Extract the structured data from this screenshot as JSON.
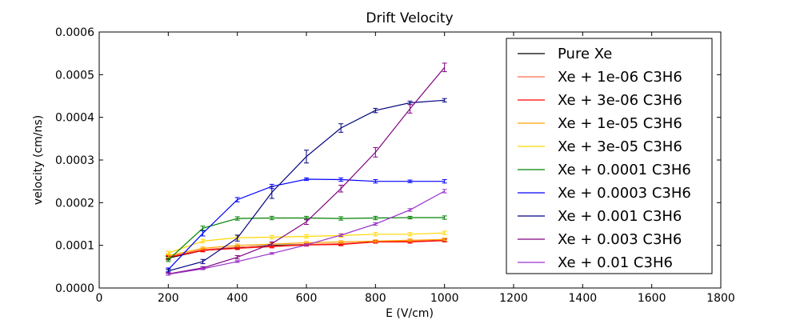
{
  "chart_data": {
    "type": "line",
    "title": "Drift Velocity",
    "xlabel": "E (V/cm)",
    "ylabel": "velocity (cm/ns)",
    "xlim": [
      0,
      1800
    ],
    "ylim": [
      0,
      0.0006
    ],
    "xticks": [
      0,
      200,
      400,
      600,
      800,
      1000,
      1200,
      1400,
      1600,
      1800
    ],
    "xtick_labels": [
      "0",
      "200",
      "400",
      "600",
      "800",
      "1000",
      "1200",
      "1400",
      "1600",
      "1800"
    ],
    "yticks": [
      0,
      0.0001,
      0.0002,
      0.0003,
      0.0004,
      0.0005,
      0.0006
    ],
    "ytick_labels": [
      "0.0000",
      "0.0001",
      "0.0002",
      "0.0003",
      "0.0004",
      "0.0005",
      "0.0006"
    ],
    "grid": false,
    "legend_position": "top-right",
    "x": [
      200,
      300,
      400,
      500,
      600,
      700,
      800,
      900,
      1000
    ],
    "series": [
      {
        "name": "Pure Xe",
        "color": "#000000",
        "values": [
          7e-05,
          8.8e-05,
          9.5e-05,
          0.0001,
          0.000102,
          0.000103,
          0.000109,
          0.000109,
          0.000112
        ],
        "errors": [
          4e-06,
          3e-06,
          3e-06,
          3e-06,
          3e-06,
          3e-06,
          3e-06,
          3e-06,
          3e-06
        ]
      },
      {
        "name": "Xe + 1e-06 C3H6",
        "color": "#ff6a4d",
        "values": [
          7.3e-05,
          9e-05,
          9.6e-05,
          9.8e-05,
          0.000102,
          0.000104,
          0.000108,
          0.00011,
          0.000113
        ],
        "errors": [
          4e-06,
          3e-06,
          3e-06,
          3e-06,
          3e-06,
          3e-06,
          3e-06,
          3e-06,
          3e-06
        ]
      },
      {
        "name": "Xe + 3e-06 C3H6",
        "color": "#ff0000",
        "values": [
          7.2e-05,
          8.8e-05,
          9.3e-05,
          9.7e-05,
          0.000101,
          0.000102,
          0.000108,
          0.000108,
          0.000111
        ],
        "errors": [
          4e-06,
          3e-06,
          3e-06,
          3e-06,
          3e-06,
          3e-06,
          3e-06,
          3e-06,
          3e-06
        ]
      },
      {
        "name": "Xe + 1e-05 C3H6",
        "color": "#ffa500",
        "values": [
          7.6e-05,
          9.3e-05,
          0.0001,
          0.000103,
          0.000106,
          0.000108,
          0.00011,
          0.000112,
          0.000114
        ],
        "errors": [
          4e-06,
          3e-06,
          3e-06,
          3e-06,
          3e-06,
          3e-06,
          3e-06,
          3e-06,
          3e-06
        ]
      },
      {
        "name": "Xe + 3e-05 C3H6",
        "color": "#ffd700",
        "values": [
          8.2e-05,
          0.00011,
          0.000118,
          0.000119,
          0.000121,
          0.000123,
          0.000126,
          0.000126,
          0.000129
        ],
        "errors": [
          4e-06,
          4e-06,
          4e-06,
          4e-06,
          4e-06,
          4e-06,
          4e-06,
          4e-06,
          4e-06
        ]
      },
      {
        "name": "Xe + 0.0001 C3H6",
        "color": "#008000",
        "values": [
          6.6e-05,
          0.00014,
          0.000163,
          0.000164,
          0.000164,
          0.000163,
          0.000164,
          0.000165,
          0.000165
        ],
        "errors": [
          4e-06,
          5e-06,
          4e-06,
          4e-06,
          4e-06,
          4e-06,
          4e-06,
          3e-06,
          4e-06
        ]
      },
      {
        "name": "Xe + 0.0003 C3H6",
        "color": "#0000ff",
        "values": [
          4.3e-05,
          0.000128,
          0.000207,
          0.000238,
          0.000255,
          0.000254,
          0.00025,
          0.00025,
          0.00025
        ],
        "errors": [
          4e-06,
          6e-06,
          5e-06,
          5e-06,
          3e-06,
          4e-06,
          4e-06,
          3e-06,
          4e-06
        ]
      },
      {
        "name": "Xe + 0.001 C3H6",
        "color": "#00007f",
        "values": [
          4e-05,
          6.2e-05,
          0.000117,
          0.000224,
          0.000308,
          0.000375,
          0.000416,
          0.000434,
          0.00044
        ],
        "errors": [
          4e-06,
          5e-06,
          7e-06,
          1.4e-05,
          1.5e-05,
          1e-05,
          5e-06,
          4e-06,
          4e-06
        ]
      },
      {
        "name": "Xe + 0.003 C3H6",
        "color": "#800080",
        "values": [
          3.3e-05,
          4.7e-05,
          7.2e-05,
          0.000104,
          0.000155,
          0.000233,
          0.000318,
          0.00042,
          0.000517
        ],
        "errors": [
          3e-06,
          3e-06,
          4e-06,
          4e-06,
          6e-06,
          8e-06,
          1.1e-05,
          1e-05,
          1e-05
        ]
      },
      {
        "name": "Xe + 0.01 C3H6",
        "color": "#9932cc",
        "values": [
          3.2e-05,
          4.5e-05,
          6.2e-05,
          8.1e-05,
          0.000101,
          0.000124,
          0.00015,
          0.000183,
          0.000227
        ],
        "errors": [
          2e-06,
          2e-06,
          2e-06,
          2e-06,
          2e-06,
          3e-06,
          3e-06,
          3e-06,
          4e-06
        ]
      }
    ]
  }
}
